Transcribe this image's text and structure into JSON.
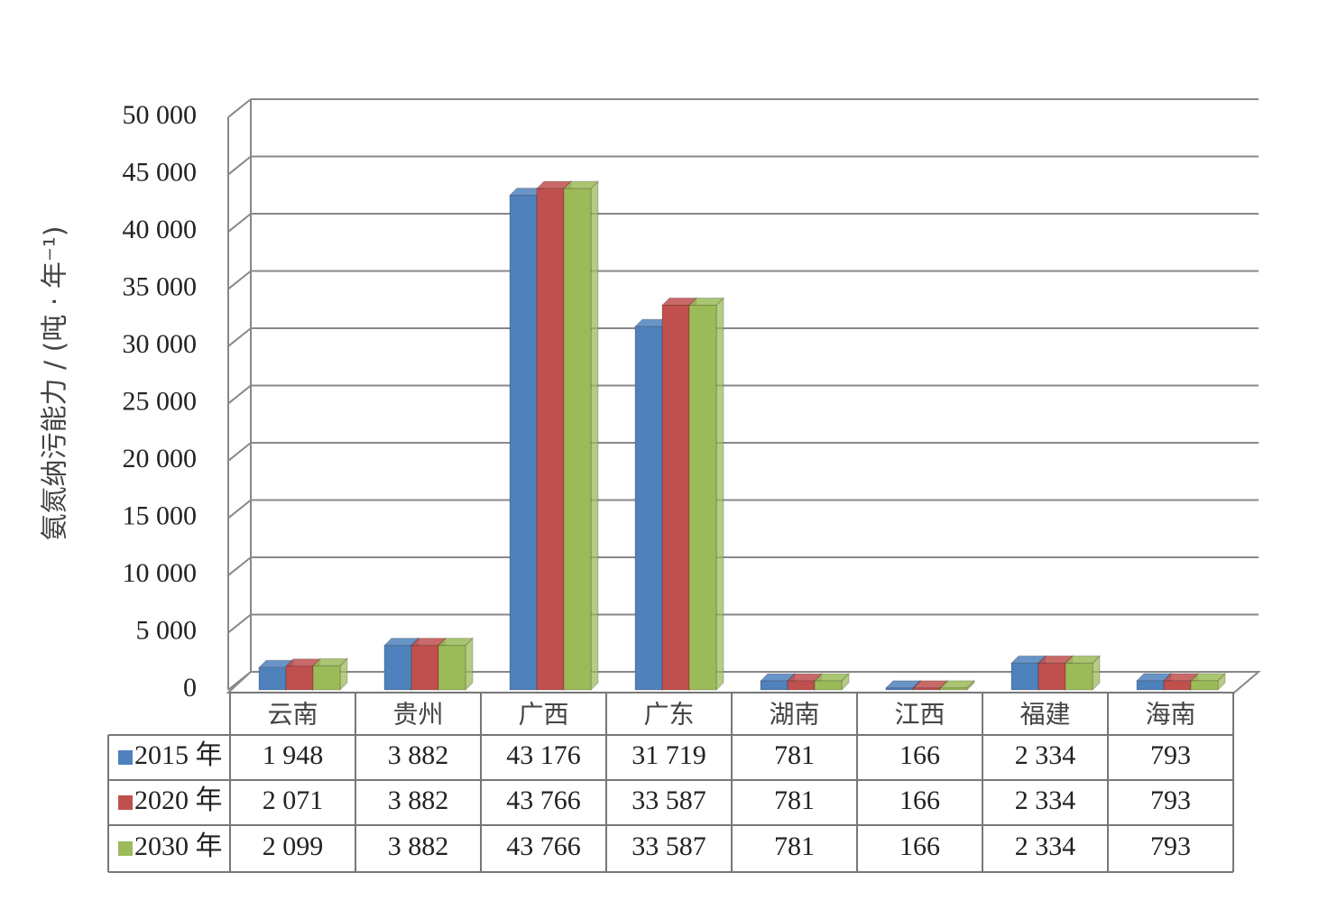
{
  "chart_data": {
    "type": "bar",
    "y_axis_label": "氨氮纳污能力 / (吨 · 年⁻¹)",
    "categories": [
      "云南",
      "贵州",
      "广西",
      "广东",
      "湖南",
      "江西",
      "福建",
      "海南"
    ],
    "series": [
      {
        "name": "2015 年",
        "color": "#4f81bd",
        "values": [
          1948,
          3882,
          43176,
          31719,
          781,
          166,
          2334,
          793
        ],
        "value_labels": [
          "1 948",
          "3 882",
          "43 176",
          "31 719",
          "781",
          "166",
          "2 334",
          "793"
        ]
      },
      {
        "name": "2020 年",
        "color": "#c0504d",
        "values": [
          2071,
          3882,
          43766,
          33587,
          781,
          166,
          2334,
          793
        ],
        "value_labels": [
          "2 071",
          "3 882",
          "43 766",
          "33 587",
          "781",
          "166",
          "2 334",
          "793"
        ]
      },
      {
        "name": "2030 年",
        "color": "#9bbb59",
        "values": [
          2099,
          3882,
          43766,
          33587,
          781,
          166,
          2334,
          793
        ],
        "value_labels": [
          "2 099",
          "3 882",
          "43 766",
          "33 587",
          "781",
          "166",
          "2 334",
          "793"
        ]
      }
    ],
    "ylim": [
      0,
      50000
    ],
    "yticks": [
      0,
      {
        "value": 5000,
        "label": "5 000"
      },
      {
        "value": 10000,
        "label": "10 000"
      },
      {
        "value": 15000,
        "label": "15 000"
      },
      {
        "value": 20000,
        "label": "20 000"
      },
      {
        "value": 25000,
        "label": "25 000"
      },
      {
        "value": 30000,
        "label": "30 000"
      },
      {
        "value": 35000,
        "label": "35 000"
      },
      {
        "value": 40000,
        "label": "40 000"
      },
      {
        "value": 45000,
        "label": "45 000"
      },
      {
        "value": 50000,
        "label": "50 000"
      }
    ],
    "grid": true
  }
}
